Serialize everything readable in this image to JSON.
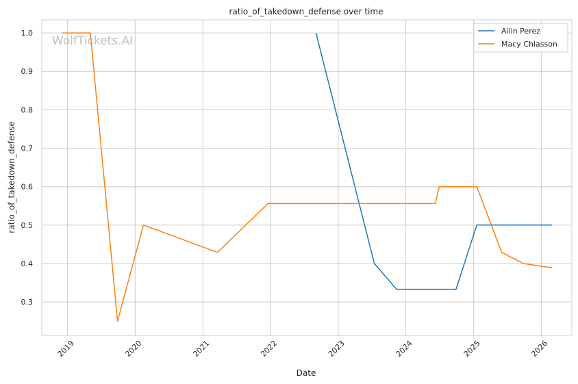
{
  "chart_data": {
    "type": "line",
    "title": "ratio_of_takedown_defense over time",
    "xlabel": "Date",
    "ylabel": "ratio_of_takedown_defense",
    "watermark": "WolfTickets.AI",
    "x_ticks": [
      "2019",
      "2020",
      "2021",
      "2022",
      "2023",
      "2024",
      "2025",
      "2026"
    ],
    "y_ticks": [
      "0.3",
      "0.4",
      "0.5",
      "0.6",
      "0.7",
      "0.8",
      "0.9",
      "1.0"
    ],
    "xlim": [
      "2018-08-15",
      "2026-06-15"
    ],
    "ylim": [
      0.213,
      1.034
    ],
    "grid": true,
    "legend_position": "top-right",
    "series": [
      {
        "name": "Ailin Perez",
        "color": "#1f77b4",
        "points": [
          {
            "x": "2022-09-03",
            "y": 1.0
          },
          {
            "x": "2023-07-15",
            "y": 0.4
          },
          {
            "x": "2023-11-12",
            "y": 0.333
          },
          {
            "x": "2024-09-28",
            "y": 0.333
          },
          {
            "x": "2025-01-18",
            "y": 0.5
          },
          {
            "x": "2026-02-28",
            "y": 0.5
          }
        ]
      },
      {
        "name": "Macy Chiasson",
        "color": "#ff7f0e",
        "points": [
          {
            "x": "2018-11-30",
            "y": 1.0
          },
          {
            "x": "2019-05-04",
            "y": 1.0
          },
          {
            "x": "2019-09-28",
            "y": 0.25
          },
          {
            "x": "2020-02-15",
            "y": 0.5
          },
          {
            "x": "2021-03-20",
            "y": 0.429
          },
          {
            "x": "2021-12-18",
            "y": 0.556
          },
          {
            "x": "2024-06-08",
            "y": 0.556
          },
          {
            "x": "2024-06-29",
            "y": 0.6
          },
          {
            "x": "2025-01-18",
            "y": 0.6
          },
          {
            "x": "2025-06-01",
            "y": 0.429
          },
          {
            "x": "2025-09-27",
            "y": 0.4
          },
          {
            "x": "2026-02-28",
            "y": 0.389
          }
        ]
      }
    ]
  }
}
